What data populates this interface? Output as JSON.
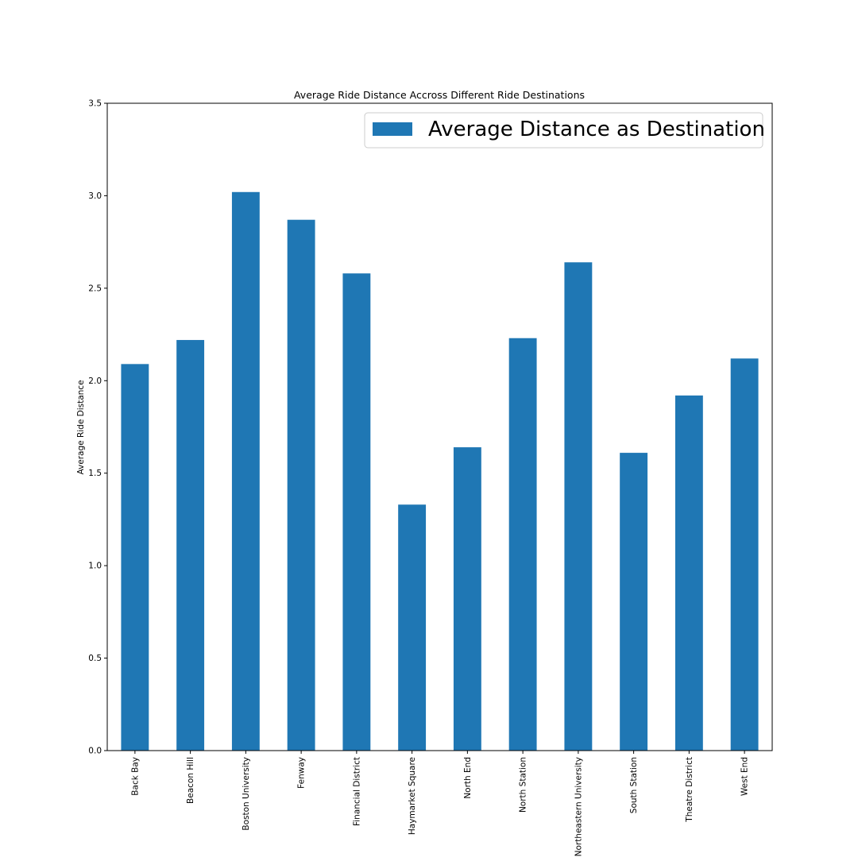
{
  "chart_data": {
    "type": "bar",
    "title": "Average Ride Distance Accross Different Ride Destinations",
    "xlabel": "",
    "ylabel": "Average Ride Distance",
    "ylim": [
      0,
      3.5
    ],
    "yticks": [
      "0.0",
      "0.5",
      "1.0",
      "1.5",
      "2.0",
      "2.5",
      "3.0",
      "3.5"
    ],
    "categories": [
      "Back Bay",
      "Beacon Hill",
      "Boston University",
      "Fenway",
      "Financial District",
      "Haymarket Square",
      "North End",
      "North Station",
      "Northeastern University",
      "South Station",
      "Theatre District",
      "West End"
    ],
    "series": [
      {
        "name": "Average Distance as Destination",
        "color": "#1f77b4",
        "values": [
          2.09,
          2.22,
          3.02,
          2.87,
          2.58,
          1.33,
          1.64,
          2.23,
          2.64,
          1.61,
          1.92,
          2.12
        ]
      }
    ],
    "legend": "top-right",
    "grid": false
  }
}
